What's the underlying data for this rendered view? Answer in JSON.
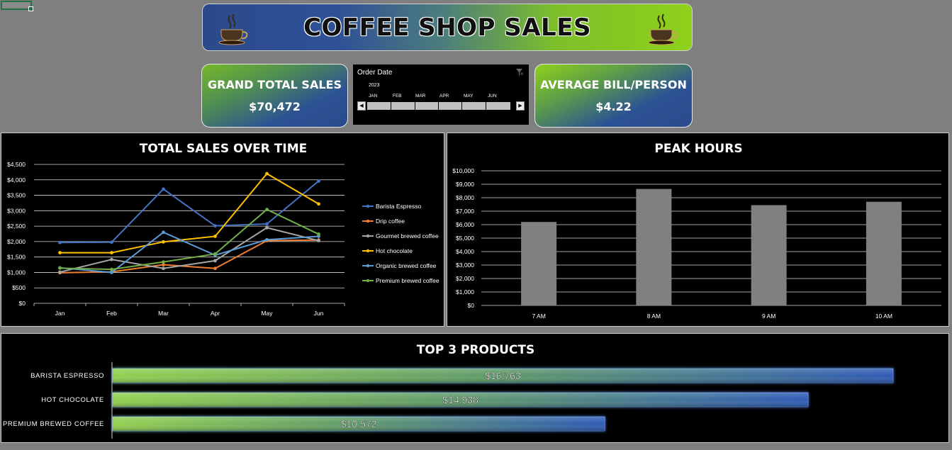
{
  "banner": {
    "title": "COFFEE SHOP SALES"
  },
  "kpis": {
    "grand_total": {
      "label": "GRAND TOTAL SALES",
      "value": "$70,472"
    },
    "avg_bill": {
      "label": "AVERAGE BILL/PERSON",
      "value": "$4.22"
    }
  },
  "slicer": {
    "title": "Order Date",
    "year": "2023",
    "months": [
      "JAN",
      "FEB",
      "MAR",
      "APR",
      "MAY",
      "JUN"
    ]
  },
  "colors": {
    "blue": "#4472c4",
    "orange": "#ed7d31",
    "gray": "#a5a5a5",
    "gold": "#ffc000",
    "lightblue": "#5b9bd5",
    "green": "#70ad47",
    "bar": "#808080"
  },
  "chart_data": [
    {
      "type": "line",
      "title": "TOTAL SALES OVER TIME",
      "categories": [
        "Jan",
        "Feb",
        "Mar",
        "Apr",
        "May",
        "Jun"
      ],
      "yticks": [
        "$0",
        "$500",
        "$1,000",
        "$1,500",
        "$2,000",
        "$2,500",
        "$3,000",
        "$3,500",
        "$4,000",
        "$4,500"
      ],
      "ylim": [
        0,
        4500
      ],
      "grid": true,
      "legend": "right",
      "series": [
        {
          "name": "Barista Espresso",
          "color": "#4472c4",
          "values": [
            1970,
            1980,
            3700,
            2510,
            2570,
            3960
          ]
        },
        {
          "name": "Drip coffee",
          "color": "#ed7d31",
          "values": [
            990,
            1020,
            1250,
            1130,
            2030,
            2050
          ]
        },
        {
          "name": "Gourmet brewed coffee",
          "color": "#a5a5a5",
          "values": [
            1010,
            1420,
            1130,
            1380,
            2450,
            2030
          ]
        },
        {
          "name": "Hot chocolate",
          "color": "#ffc000",
          "values": [
            1640,
            1640,
            1990,
            2170,
            4200,
            3220
          ]
        },
        {
          "name": "Organic brewed coffee",
          "color": "#5b9bd5",
          "values": [
            1150,
            1000,
            2300,
            1560,
            2060,
            2170
          ]
        },
        {
          "name": "Premium brewed coffee",
          "color": "#70ad47",
          "values": [
            1140,
            1100,
            1340,
            1600,
            3040,
            2240
          ]
        }
      ]
    },
    {
      "type": "bar",
      "title": "PEAK HOURS",
      "categories": [
        "7 AM",
        "8 AM",
        "9 AM",
        "10 AM"
      ],
      "values": [
        6200,
        8650,
        7450,
        7700
      ],
      "yticks": [
        "$0",
        "$1,000",
        "$2,000",
        "$3,000",
        "$4,000",
        "$5,000",
        "$6,000",
        "$7,000",
        "$8,000",
        "$9,000",
        "$10,000"
      ],
      "ylim": [
        0,
        10000
      ],
      "grid": true
    },
    {
      "type": "bar",
      "orientation": "horizontal",
      "title": "TOP 3 PRODUCTS",
      "categories": [
        "BARISTA ESPRESSO",
        "HOT CHOCOLATE",
        "PREMIUM BREWED COFFEE"
      ],
      "values": [
        16763,
        14938,
        10572
      ],
      "labels": [
        "$16,763",
        "$14,938",
        "$10,572"
      ]
    }
  ]
}
